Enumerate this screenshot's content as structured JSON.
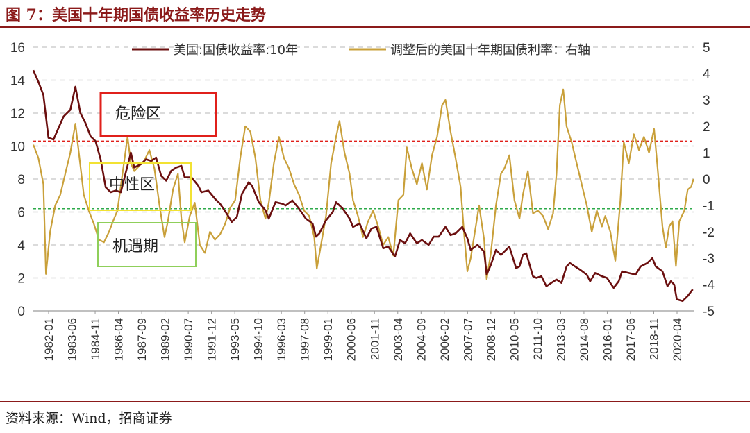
{
  "header": {
    "title": "图 7：美国十年期国债收益率历史走势"
  },
  "footer": {
    "source": "资料来源：Wind，招商证券"
  },
  "chart_data": {
    "type": "line",
    "y_left": {
      "min": 0,
      "max": 16,
      "ticks": [
        0,
        2,
        4,
        6,
        8,
        10,
        12,
        14,
        16
      ]
    },
    "y_right": {
      "min": -5,
      "max": 5,
      "ticks": [
        -5,
        -4,
        -3,
        -2,
        -1,
        0,
        1,
        2,
        3,
        4,
        5
      ]
    },
    "x_range": [
      1982.0,
      2021.3
    ],
    "x_ticks": [
      "1982-01",
      "1983-06",
      "1984-11",
      "1986-04",
      "1987-09",
      "1989-02",
      "1990-07",
      "1991-12",
      "1993-05",
      "1994-10",
      "1996-03",
      "1997-08",
      "1999-01",
      "2000-06",
      "2001-11",
      "2003-04",
      "2004-09",
      "2006-02",
      "2007-07",
      "2008-12",
      "2010-05",
      "2011-10",
      "2013-03",
      "2014-08",
      "2016-01",
      "2017-06",
      "2018-11",
      "2020-04"
    ],
    "grid": "horizontal-dashed",
    "legend_position": "top",
    "series": [
      {
        "name": "美国:国债收益率:10年",
        "axis": "left",
        "color": "#6b0f0f",
        "points": [
          [
            1982.0,
            14.6
          ],
          [
            1982.3,
            13.9
          ],
          [
            1982.6,
            13.1
          ],
          [
            1982.9,
            10.5
          ],
          [
            1983.2,
            10.4
          ],
          [
            1983.5,
            11.1
          ],
          [
            1983.8,
            11.8
          ],
          [
            1984.2,
            12.2
          ],
          [
            1984.5,
            13.6
          ],
          [
            1984.8,
            12.0
          ],
          [
            1985.1,
            11.4
          ],
          [
            1985.4,
            10.6
          ],
          [
            1985.7,
            10.3
          ],
          [
            1986.0,
            9.2
          ],
          [
            1986.3,
            7.5
          ],
          [
            1986.6,
            7.2
          ],
          [
            1986.9,
            7.3
          ],
          [
            1987.2,
            7.2
          ],
          [
            1987.5,
            8.4
          ],
          [
            1987.8,
            9.6
          ],
          [
            1988.0,
            8.7
          ],
          [
            1988.4,
            8.9
          ],
          [
            1988.7,
            9.2
          ],
          [
            1989.0,
            9.1
          ],
          [
            1989.3,
            9.3
          ],
          [
            1989.6,
            8.2
          ],
          [
            1989.9,
            7.9
          ],
          [
            1990.2,
            8.5
          ],
          [
            1990.5,
            8.7
          ],
          [
            1990.8,
            8.8
          ],
          [
            1991.0,
            8.1
          ],
          [
            1991.4,
            8.1
          ],
          [
            1991.8,
            7.6
          ],
          [
            1992.0,
            7.2
          ],
          [
            1992.4,
            7.3
          ],
          [
            1992.8,
            6.8
          ],
          [
            1993.1,
            6.5
          ],
          [
            1993.5,
            5.9
          ],
          [
            1993.8,
            5.4
          ],
          [
            1994.1,
            5.7
          ],
          [
            1994.4,
            7.1
          ],
          [
            1994.8,
            7.8
          ],
          [
            1995.0,
            7.6
          ],
          [
            1995.4,
            6.6
          ],
          [
            1995.8,
            6.1
          ],
          [
            1996.0,
            5.6
          ],
          [
            1996.4,
            6.6
          ],
          [
            1996.8,
            6.5
          ],
          [
            1997.0,
            6.4
          ],
          [
            1997.4,
            6.7
          ],
          [
            1997.8,
            6.2
          ],
          [
            1998.2,
            5.6
          ],
          [
            1998.6,
            5.3
          ],
          [
            1998.8,
            4.5
          ],
          [
            1999.0,
            4.7
          ],
          [
            1999.4,
            5.5
          ],
          [
            1999.8,
            6.0
          ],
          [
            2000.0,
            6.6
          ],
          [
            2000.4,
            6.2
          ],
          [
            2000.8,
            5.6
          ],
          [
            2001.0,
            5.1
          ],
          [
            2001.4,
            5.3
          ],
          [
            2001.8,
            4.4
          ],
          [
            2002.1,
            5.0
          ],
          [
            2002.4,
            5.1
          ],
          [
            2002.8,
            3.8
          ],
          [
            2003.1,
            3.9
          ],
          [
            2003.5,
            3.3
          ],
          [
            2003.8,
            4.3
          ],
          [
            2004.1,
            4.1
          ],
          [
            2004.4,
            4.7
          ],
          [
            2004.8,
            4.1
          ],
          [
            2005.1,
            4.3
          ],
          [
            2005.5,
            4.0
          ],
          [
            2005.8,
            4.5
          ],
          [
            2006.1,
            4.5
          ],
          [
            2006.5,
            5.1
          ],
          [
            2006.8,
            4.6
          ],
          [
            2007.1,
            4.7
          ],
          [
            2007.5,
            5.1
          ],
          [
            2007.8,
            4.4
          ],
          [
            2008.0,
            3.7
          ],
          [
            2008.4,
            4.0
          ],
          [
            2008.8,
            3.6
          ],
          [
            2008.95,
            2.2
          ],
          [
            2009.2,
            2.8
          ],
          [
            2009.5,
            3.7
          ],
          [
            2009.8,
            3.4
          ],
          [
            2010.1,
            3.7
          ],
          [
            2010.3,
            3.9
          ],
          [
            2010.7,
            2.6
          ],
          [
            2010.9,
            2.7
          ],
          [
            2011.1,
            3.4
          ],
          [
            2011.3,
            3.5
          ],
          [
            2011.7,
            2.1
          ],
          [
            2011.9,
            2.0
          ],
          [
            2012.2,
            2.1
          ],
          [
            2012.5,
            1.5
          ],
          [
            2012.8,
            1.7
          ],
          [
            2013.1,
            1.9
          ],
          [
            2013.4,
            1.7
          ],
          [
            2013.7,
            2.7
          ],
          [
            2013.9,
            2.9
          ],
          [
            2014.2,
            2.7
          ],
          [
            2014.5,
            2.5
          ],
          [
            2014.9,
            2.2
          ],
          [
            2015.1,
            1.8
          ],
          [
            2015.4,
            2.3
          ],
          [
            2015.8,
            2.1
          ],
          [
            2016.1,
            2.0
          ],
          [
            2016.5,
            1.4
          ],
          [
            2016.8,
            1.8
          ],
          [
            2017.0,
            2.4
          ],
          [
            2017.4,
            2.3
          ],
          [
            2017.8,
            2.2
          ],
          [
            2018.1,
            2.7
          ],
          [
            2018.5,
            2.9
          ],
          [
            2018.8,
            3.2
          ],
          [
            2019.0,
            2.7
          ],
          [
            2019.4,
            2.4
          ],
          [
            2019.7,
            1.5
          ],
          [
            2019.9,
            1.8
          ],
          [
            2020.1,
            1.6
          ],
          [
            2020.25,
            0.7
          ],
          [
            2020.6,
            0.6
          ],
          [
            2020.9,
            0.9
          ],
          [
            2021.2,
            1.3
          ]
        ]
      },
      {
        "name": "调整后的美国十年期国债利率：右轴",
        "axis": "right",
        "color": "#c9a03a",
        "points": [
          [
            1982.0,
            1.3
          ],
          [
            1982.3,
            0.8
          ],
          [
            1982.6,
            -0.2
          ],
          [
            1982.75,
            -3.6
          ],
          [
            1983.0,
            -2.0
          ],
          [
            1983.3,
            -1.0
          ],
          [
            1983.6,
            -0.6
          ],
          [
            1983.9,
            0.2
          ],
          [
            1984.2,
            1.0
          ],
          [
            1984.5,
            2.1
          ],
          [
            1984.8,
            0.5
          ],
          [
            1985.0,
            -0.6
          ],
          [
            1985.3,
            -1.2
          ],
          [
            1985.6,
            -1.7
          ],
          [
            1985.9,
            -2.3
          ],
          [
            1986.2,
            -2.4
          ],
          [
            1986.5,
            -2.0
          ],
          [
            1986.8,
            -1.5
          ],
          [
            1987.0,
            -1.2
          ],
          [
            1987.3,
            0.2
          ],
          [
            1987.6,
            1.6
          ],
          [
            1987.8,
            0.6
          ],
          [
            1988.0,
            0.3
          ],
          [
            1988.3,
            0.5
          ],
          [
            1988.6,
            0.7
          ],
          [
            1988.9,
            1.1
          ],
          [
            1989.2,
            0.4
          ],
          [
            1989.5,
            -1.0
          ],
          [
            1989.8,
            -2.2
          ],
          [
            1990.0,
            -1.6
          ],
          [
            1990.3,
            -0.4
          ],
          [
            1990.6,
            0.2
          ],
          [
            1990.8,
            -1.5
          ],
          [
            1991.0,
            -2.4
          ],
          [
            1991.3,
            -1.4
          ],
          [
            1991.6,
            -0.9
          ],
          [
            1991.9,
            -2.5
          ],
          [
            1992.2,
            -2.8
          ],
          [
            1992.5,
            -2.0
          ],
          [
            1992.8,
            -2.3
          ],
          [
            1993.1,
            -2.1
          ],
          [
            1993.4,
            -1.7
          ],
          [
            1993.7,
            -1.1
          ],
          [
            1994.0,
            -0.8
          ],
          [
            1994.3,
            0.8
          ],
          [
            1994.6,
            2.0
          ],
          [
            1994.9,
            1.8
          ],
          [
            1995.2,
            0.8
          ],
          [
            1995.5,
            -0.8
          ],
          [
            1995.8,
            -1.5
          ],
          [
            1996.0,
            -0.9
          ],
          [
            1996.3,
            0.6
          ],
          [
            1996.6,
            1.6
          ],
          [
            1996.9,
            0.8
          ],
          [
            1997.2,
            0.4
          ],
          [
            1997.5,
            -0.2
          ],
          [
            1997.8,
            -0.6
          ],
          [
            1998.1,
            -1.2
          ],
          [
            1998.4,
            -1.4
          ],
          [
            1998.7,
            -2.2
          ],
          [
            1998.85,
            -3.4
          ],
          [
            1999.1,
            -2.5
          ],
          [
            1999.4,
            -1.4
          ],
          [
            1999.7,
            0.6
          ],
          [
            2000.0,
            1.6
          ],
          [
            2000.2,
            2.2
          ],
          [
            2000.5,
            1.0
          ],
          [
            2000.8,
            0.2
          ],
          [
            2001.0,
            -0.8
          ],
          [
            2001.3,
            -1.4
          ],
          [
            2001.6,
            -2.2
          ],
          [
            2001.9,
            -1.6
          ],
          [
            2002.2,
            -1.2
          ],
          [
            2002.5,
            -1.8
          ],
          [
            2002.8,
            -2.5
          ],
          [
            2003.1,
            -2.2
          ],
          [
            2003.4,
            -2.9
          ],
          [
            2003.7,
            -0.8
          ],
          [
            2004.0,
            -0.6
          ],
          [
            2004.2,
            1.2
          ],
          [
            2004.5,
            0.4
          ],
          [
            2004.8,
            -0.2
          ],
          [
            2005.1,
            0.6
          ],
          [
            2005.4,
            -0.4
          ],
          [
            2005.7,
            0.9
          ],
          [
            2006.0,
            1.6
          ],
          [
            2006.3,
            2.8
          ],
          [
            2006.5,
            3.0
          ],
          [
            2006.8,
            1.8
          ],
          [
            2007.1,
            0.8
          ],
          [
            2007.4,
            -0.3
          ],
          [
            2007.6,
            -2.0
          ],
          [
            2007.8,
            -3.5
          ],
          [
            2008.0,
            -3.0
          ],
          [
            2008.3,
            -1.8
          ],
          [
            2008.5,
            -1.0
          ],
          [
            2008.8,
            -2.3
          ],
          [
            2008.95,
            -3.8
          ],
          [
            2009.2,
            -2.8
          ],
          [
            2009.5,
            -1.0
          ],
          [
            2009.8,
            0.2
          ],
          [
            2010.0,
            0.4
          ],
          [
            2010.3,
            0.9
          ],
          [
            2010.6,
            -0.8
          ],
          [
            2010.9,
            -1.5
          ],
          [
            2011.1,
            -0.6
          ],
          [
            2011.4,
            0.3
          ],
          [
            2011.7,
            -1.3
          ],
          [
            2012.0,
            -1.2
          ],
          [
            2012.3,
            -1.4
          ],
          [
            2012.6,
            -1.9
          ],
          [
            2012.9,
            -1.3
          ],
          [
            2013.1,
            0.2
          ],
          [
            2013.3,
            2.8
          ],
          [
            2013.5,
            3.4
          ],
          [
            2013.7,
            2.0
          ],
          [
            2014.0,
            1.4
          ],
          [
            2014.3,
            0.6
          ],
          [
            2014.6,
            -0.2
          ],
          [
            2014.9,
            -1.0
          ],
          [
            2015.2,
            -2.0
          ],
          [
            2015.5,
            -1.2
          ],
          [
            2015.8,
            -1.8
          ],
          [
            2016.0,
            -1.4
          ],
          [
            2016.3,
            -2.0
          ],
          [
            2016.6,
            -3.1
          ],
          [
            2016.9,
            -0.8
          ],
          [
            2017.1,
            1.4
          ],
          [
            2017.4,
            0.6
          ],
          [
            2017.7,
            1.7
          ],
          [
            2018.0,
            1.1
          ],
          [
            2018.3,
            1.6
          ],
          [
            2018.6,
            1.0
          ],
          [
            2018.9,
            1.9
          ],
          [
            2019.1,
            0.5
          ],
          [
            2019.4,
            -1.8
          ],
          [
            2019.6,
            -2.6
          ],
          [
            2019.8,
            -1.8
          ],
          [
            2020.0,
            -1.6
          ],
          [
            2020.2,
            -3.3
          ],
          [
            2020.4,
            -1.6
          ],
          [
            2020.7,
            -1.2
          ],
          [
            2020.9,
            -0.4
          ],
          [
            2021.1,
            -0.3
          ],
          [
            2021.25,
            0.0
          ]
        ]
      }
    ],
    "reference_lines": [
      {
        "axis": "left",
        "value": 10.3,
        "color": "#e0201b"
      },
      {
        "axis": "left",
        "value": 6.2,
        "color": "#2eaa4a"
      }
    ],
    "annotations": [
      {
        "label": "危险区",
        "color": "#e0201b"
      },
      {
        "label": "中性区",
        "color": "#f2e233"
      },
      {
        "label": "机遇期",
        "color": "#8fcf5a"
      }
    ]
  }
}
